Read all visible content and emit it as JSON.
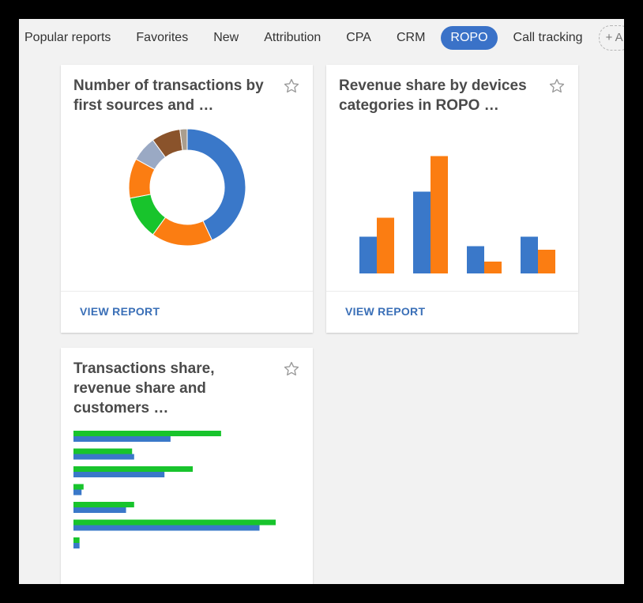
{
  "tabs": {
    "items": [
      {
        "label": "Popular reports"
      },
      {
        "label": "Favorites"
      },
      {
        "label": "New"
      },
      {
        "label": "Attribution"
      },
      {
        "label": "CPA"
      },
      {
        "label": "CRM"
      },
      {
        "label": "ROPO"
      },
      {
        "label": "Call tracking"
      }
    ],
    "active": "ROPO",
    "add_label": "+ A"
  },
  "cards": [
    {
      "title": "Number of transactions by first sources and …",
      "link": "VIEW REPORT"
    },
    {
      "title": "Revenue share by devices categories in ROPO …",
      "link": "VIEW REPORT"
    },
    {
      "title": "Transactions share, revenue share and customers …"
    }
  ],
  "icons": {
    "favorite": "star-outline-icon"
  },
  "colors": {
    "accent": "#3a72c8",
    "blue": "#3a78c9",
    "orange": "#fb7d12",
    "green": "#18c42c",
    "gray_blue": "#9aa9c4",
    "brown": "#8a532b"
  },
  "chart_data": [
    {
      "type": "pie",
      "values": [
        43,
        17,
        12,
        11,
        7,
        8,
        2
      ],
      "colors": [
        "#3a78c9",
        "#fb7d12",
        "#18c42c",
        "#fb7d12",
        "#9aa9c4",
        "#8a532b",
        "#aa9e8e"
      ]
    },
    {
      "type": "bar",
      "categories": [
        "",
        "",
        "",
        ""
      ],
      "series": [
        {
          "values": [
            31,
            69,
            23,
            31
          ],
          "color": "#3a78c9"
        },
        {
          "values": [
            47,
            99,
            10,
            20
          ],
          "color": "#fb7d12"
        }
      ],
      "ylim": [
        0,
        100
      ]
    },
    {
      "type": "bar",
      "orientation": "horizontal",
      "categories": [
        "",
        "",
        "",
        "",
        "",
        "",
        ""
      ],
      "series": [
        {
          "values": [
            73,
            29,
            59,
            5,
            30,
            100,
            3
          ],
          "color": "#18c42c"
        },
        {
          "values": [
            48,
            30,
            45,
            4,
            26,
            92,
            3
          ],
          "color": "#3a78c9"
        }
      ],
      "xlim": [
        0,
        100
      ]
    }
  ]
}
